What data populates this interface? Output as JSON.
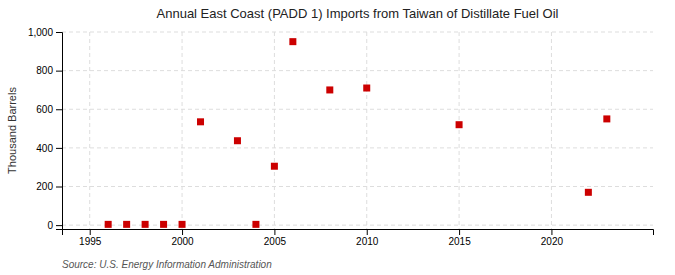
{
  "chart_data": {
    "type": "scatter",
    "title": "Annual East Coast (PADD 1) Imports from Taiwan of Distillate Fuel Oil",
    "ylabel": "Thousand Barrels",
    "annotation": "Source: U.S. Energy Information Administration",
    "x": [
      1996,
      1997,
      1998,
      1999,
      2000,
      2001,
      2003,
      2004,
      2005,
      2006,
      2008,
      2010,
      2015,
      2022,
      2023
    ],
    "values": [
      4,
      4,
      4,
      4,
      4,
      535,
      437,
      4,
      305,
      950,
      700,
      710,
      520,
      170,
      550
    ],
    "color": "#cc0000",
    "marker": "square",
    "xlim": [
      1993.5,
      2025.5
    ],
    "ylim": [
      -20,
      1000
    ],
    "xticks": [
      1995,
      2000,
      2005,
      2010,
      2015,
      2020
    ],
    "yticks": [
      0,
      200,
      400,
      600,
      800,
      {
        "value": 1000,
        "label": "1,000"
      }
    ],
    "grid": true
  }
}
